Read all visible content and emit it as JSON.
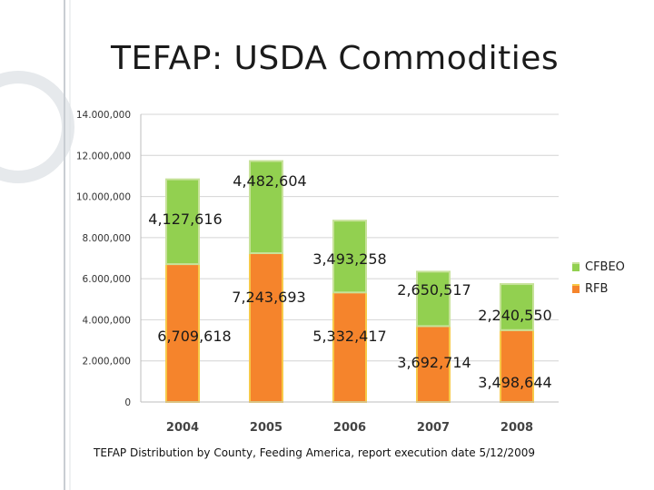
{
  "title": "TEFAP:  USDA Commodities",
  "source": "TEFAP Distribution by County, Feeding America, report execution date 5/12/2009",
  "colors": {
    "rfb": "#f5842c",
    "rfb_edge": "#f7c948",
    "cfbeo": "#92d050",
    "cfbeo_edge": "#c7e29a",
    "grid": "#d4d4d4",
    "deco": "#e6e9ec"
  },
  "chart_data": {
    "type": "bar",
    "stacked": true,
    "title": "TEFAP:  USDA Commodities",
    "xlabel": "",
    "ylabel": "",
    "categories": [
      "2004",
      "2005",
      "2006",
      "2007",
      "2008"
    ],
    "ylim": [
      0,
      14000000
    ],
    "yticks": [
      0,
      2000000,
      4000000,
      6000000,
      8000000,
      10000000,
      12000000,
      14000000
    ],
    "ytick_labels": [
      "0",
      "2.000,000",
      "4.000,000",
      "6.000,000",
      "8.000,000",
      "10.000,000",
      "12.000,000",
      "14.000,000"
    ],
    "grid": true,
    "legend_position": "right",
    "series": [
      {
        "name": "RFB",
        "values": [
          6709618,
          7243693,
          5332417,
          3692714,
          3498644
        ],
        "labels": [
          "6,709,618",
          "7,243,693",
          "5,332,417",
          "3,692,714",
          "3,498,644"
        ]
      },
      {
        "name": "CFBEO",
        "values": [
          4127616,
          4482604,
          3493258,
          2650517,
          2240550
        ],
        "labels": [
          "4,127,616",
          "4,482,604",
          "3,493,258",
          "2,650,517",
          "2,240,550"
        ]
      }
    ]
  }
}
